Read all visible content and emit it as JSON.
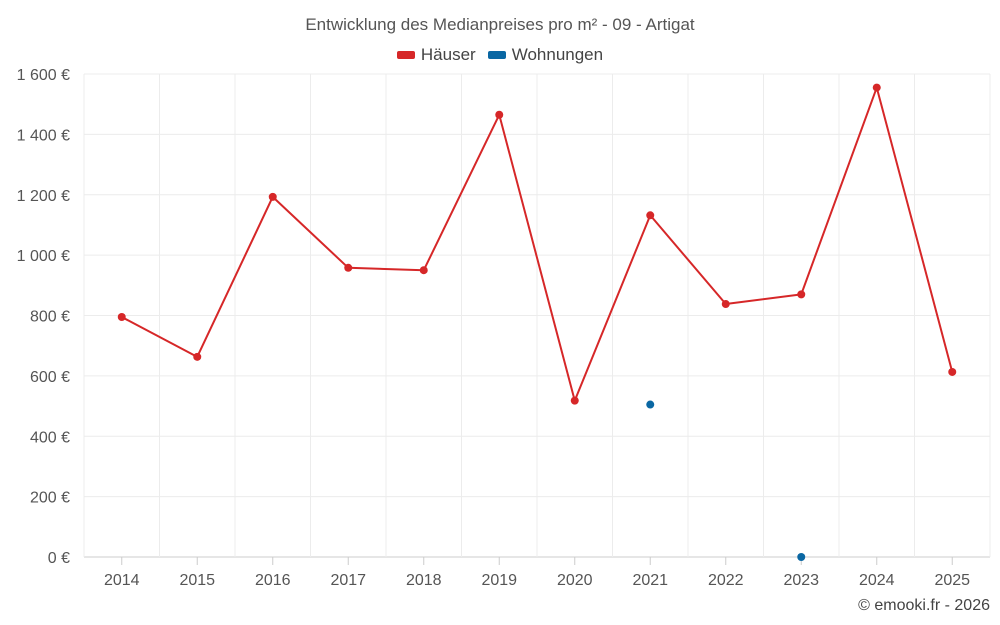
{
  "chart_data": {
    "type": "line",
    "title": "Entwicklung des Medianpreises pro m² - 09 - Artigat",
    "categories": [
      "2014",
      "2015",
      "2016",
      "2017",
      "2018",
      "2019",
      "2020",
      "2021",
      "2022",
      "2023",
      "2024",
      "2025"
    ],
    "y_tick_labels": [
      "0 €",
      "200 €",
      "400 €",
      "600 €",
      "800 €",
      "1 000 €",
      "1 200 €",
      "1 400 €",
      "1 600 €"
    ],
    "y_ticks": [
      0,
      200,
      400,
      600,
      800,
      1000,
      1200,
      1400,
      1600
    ],
    "ylim": [
      0,
      1600
    ],
    "xlabel": "",
    "ylabel": "",
    "legend_position": "top-center",
    "grid": true,
    "series": [
      {
        "name": "Häuser",
        "color": "#d62728",
        "connect": true,
        "values": [
          795,
          663,
          1193,
          958,
          950,
          1465,
          518,
          1132,
          838,
          870,
          1555,
          613
        ]
      },
      {
        "name": "Wohnungen",
        "color": "#0a67a3",
        "connect": false,
        "values": [
          null,
          null,
          null,
          null,
          null,
          null,
          null,
          505,
          null,
          0,
          null,
          null
        ]
      }
    ]
  },
  "credits": "© emooki.fr - 2026"
}
